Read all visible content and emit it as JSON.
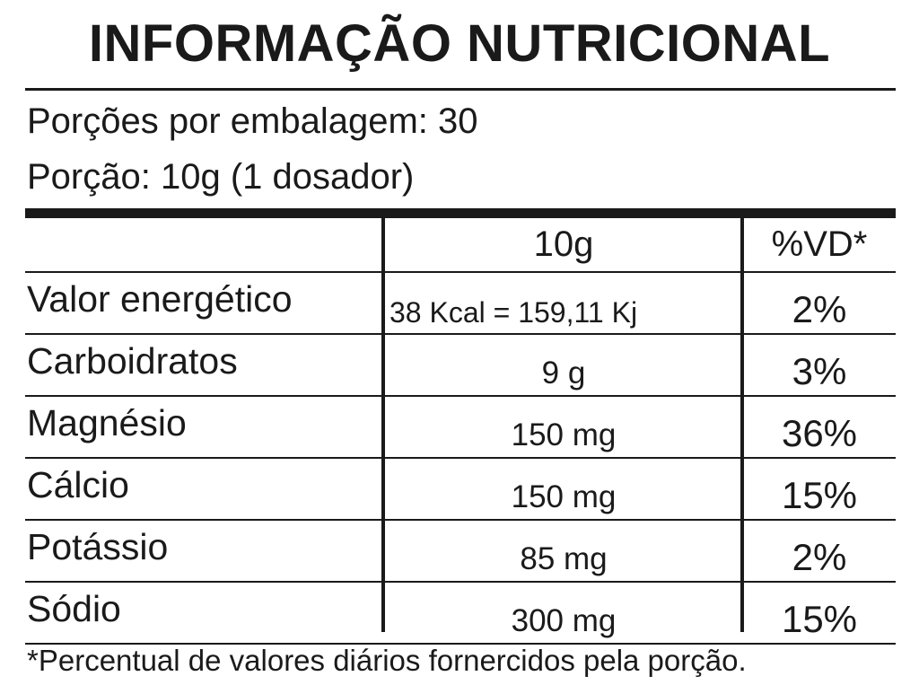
{
  "title": "INFORMAÇÃO NUTRICIONAL",
  "servings_per_package": "Porções por embalagem: 30",
  "serving_size": "Porção: 10g (1 dosador)",
  "table": {
    "header": {
      "name": "",
      "amount": "10g",
      "vd": "%VD*"
    },
    "rows": [
      {
        "name": "Valor energético",
        "amount": "38 Kcal = 159,11 Kj",
        "vd": "2%"
      },
      {
        "name": "Carboidratos",
        "amount": "9 g",
        "vd": "3%"
      },
      {
        "name": "Magnésio",
        "amount": "150 mg",
        "vd": "36%"
      },
      {
        "name": "Cálcio",
        "amount": "150 mg",
        "vd": "15%"
      },
      {
        "name": "Potássio",
        "amount": "85 mg",
        "vd": "2%"
      },
      {
        "name": "Sódio",
        "amount": "300 mg",
        "vd": "15%"
      }
    ]
  },
  "footnote": "*Percentual de valores diários fornercidos pela porção.",
  "colors": {
    "text": "#1a1a1a",
    "background": "#ffffff"
  }
}
